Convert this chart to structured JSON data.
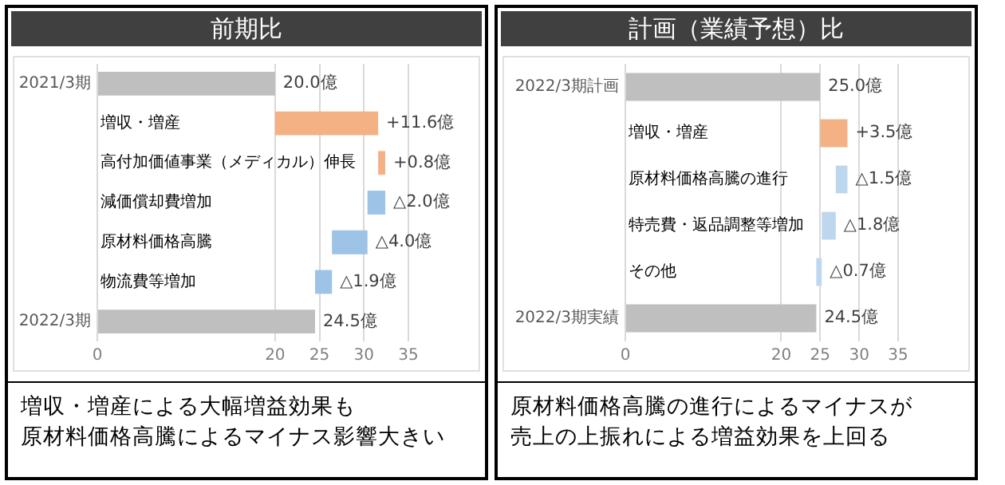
{
  "chart_data": [
    {
      "type": "bar",
      "orientation": "horizontal",
      "title": "前期比",
      "categories": [
        "2021/3期",
        "増収・増産",
        "高付加価値事業（メディカル）伸長",
        "減価償却費増加",
        "原材料価格高騰",
        "物流費等増加",
        "2022/3期"
      ],
      "values": [
        20.0,
        11.6,
        0.8,
        -2.0,
        -4.0,
        -1.9,
        24.5
      ],
      "base": [
        0,
        20.0,
        31.6,
        32.4,
        30.4,
        26.4,
        0
      ],
      "colors": [
        "#bfbfbf",
        "#f4b183",
        "#f4b183",
        "#9dc3e6",
        "#9dc3e6",
        "#9dc3e6",
        "#bfbfbf"
      ],
      "value_labels": [
        "20.0億",
        "+11.6億",
        "+0.8億",
        "△2.0億",
        "△4.0億",
        "△1.9億",
        "24.5億"
      ],
      "xlim": [
        0,
        35
      ],
      "xticks": [
        0,
        20,
        25,
        30,
        35
      ],
      "grid": "x",
      "annotations": [
        "増収・増産による大幅増益効果も",
        "原材料価格高騰によるマイナス影響大きい"
      ]
    },
    {
      "type": "bar",
      "orientation": "horizontal",
      "title": "計画（業績予想）比",
      "categories": [
        "2022/3期計画",
        "増収・増産",
        "原材料価格高騰の進行",
        "特売費・返品調整等増加",
        "その他",
        "2022/3期実績"
      ],
      "values": [
        25.0,
        3.5,
        -1.5,
        -1.8,
        -0.7,
        24.5
      ],
      "base": [
        0,
        25.0,
        28.5,
        27.0,
        25.2,
        0
      ],
      "colors": [
        "#bfbfbf",
        "#f4b183",
        "#bdd7ee",
        "#bdd7ee",
        "#bdd7ee",
        "#bfbfbf"
      ],
      "value_labels": [
        "25.0億",
        "+3.5億",
        "△1.5億",
        "△1.8億",
        "△0.7億",
        "24.5億"
      ],
      "xlim": [
        0,
        35
      ],
      "xticks": [
        0,
        20,
        25,
        30,
        35
      ],
      "grid": "x",
      "annotations": [
        "原材料価格高騰の進行によるマイナスが",
        "売上の上振れによる増益効果を上回る"
      ]
    }
  ]
}
